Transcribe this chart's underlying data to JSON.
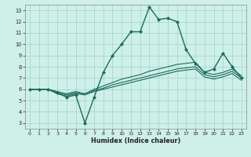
{
  "xlabel": "Humidex (Indice chaleur)",
  "bg_color": "#cef0e8",
  "grid_color": "#9ed4ca",
  "line_color": "#1a6b5a",
  "xlim": [
    -0.5,
    23.5
  ],
  "ylim": [
    2.5,
    13.5
  ],
  "xticks": [
    0,
    1,
    2,
    3,
    4,
    5,
    6,
    7,
    8,
    9,
    10,
    11,
    12,
    13,
    14,
    15,
    16,
    17,
    18,
    19,
    20,
    21,
    22,
    23
  ],
  "yticks": [
    3,
    4,
    5,
    6,
    7,
    8,
    9,
    10,
    11,
    12,
    13
  ],
  "series": [
    {
      "x": [
        0,
        1,
        2,
        3,
        4,
        5,
        6,
        7,
        8,
        9,
        10,
        11,
        12,
        13,
        14,
        15,
        16,
        17,
        18,
        19,
        20,
        21,
        22,
        23
      ],
      "y": [
        6.0,
        6.0,
        6.0,
        5.7,
        5.3,
        5.5,
        3.0,
        5.3,
        7.5,
        9.0,
        10.0,
        11.1,
        11.1,
        13.3,
        12.2,
        12.3,
        12.0,
        9.5,
        8.3,
        7.5,
        7.8,
        9.2,
        8.0,
        7.0
      ],
      "marker": true,
      "lw": 1.0
    },
    {
      "x": [
        0,
        1,
        2,
        3,
        4,
        5,
        6,
        7,
        8,
        9,
        10,
        11,
        12,
        13,
        14,
        15,
        16,
        17,
        18,
        19,
        20,
        21,
        22,
        23
      ],
      "y": [
        6.0,
        6.0,
        6.0,
        5.8,
        5.6,
        5.8,
        5.6,
        6.0,
        6.3,
        6.6,
        6.9,
        7.1,
        7.3,
        7.6,
        7.8,
        8.0,
        8.2,
        8.3,
        8.4,
        7.5,
        7.3,
        7.5,
        7.8,
        7.2
      ],
      "marker": false,
      "lw": 0.8
    },
    {
      "x": [
        0,
        1,
        2,
        3,
        4,
        5,
        6,
        7,
        8,
        9,
        10,
        11,
        12,
        13,
        14,
        15,
        16,
        17,
        18,
        19,
        20,
        21,
        22,
        23
      ],
      "y": [
        6.0,
        6.0,
        6.0,
        5.7,
        5.5,
        5.7,
        5.6,
        5.9,
        6.1,
        6.4,
        6.6,
        6.8,
        7.0,
        7.2,
        7.4,
        7.6,
        7.8,
        7.9,
        8.0,
        7.3,
        7.1,
        7.3,
        7.6,
        7.0
      ],
      "marker": false,
      "lw": 0.8
    },
    {
      "x": [
        0,
        1,
        2,
        3,
        4,
        5,
        6,
        7,
        8,
        9,
        10,
        11,
        12,
        13,
        14,
        15,
        16,
        17,
        18,
        19,
        20,
        21,
        22,
        23
      ],
      "y": [
        6.0,
        6.0,
        6.0,
        5.6,
        5.4,
        5.6,
        5.5,
        5.8,
        6.0,
        6.2,
        6.4,
        6.6,
        6.8,
        7.0,
        7.2,
        7.4,
        7.6,
        7.7,
        7.8,
        7.1,
        6.9,
        7.1,
        7.4,
        6.8
      ],
      "marker": false,
      "lw": 0.8
    }
  ]
}
